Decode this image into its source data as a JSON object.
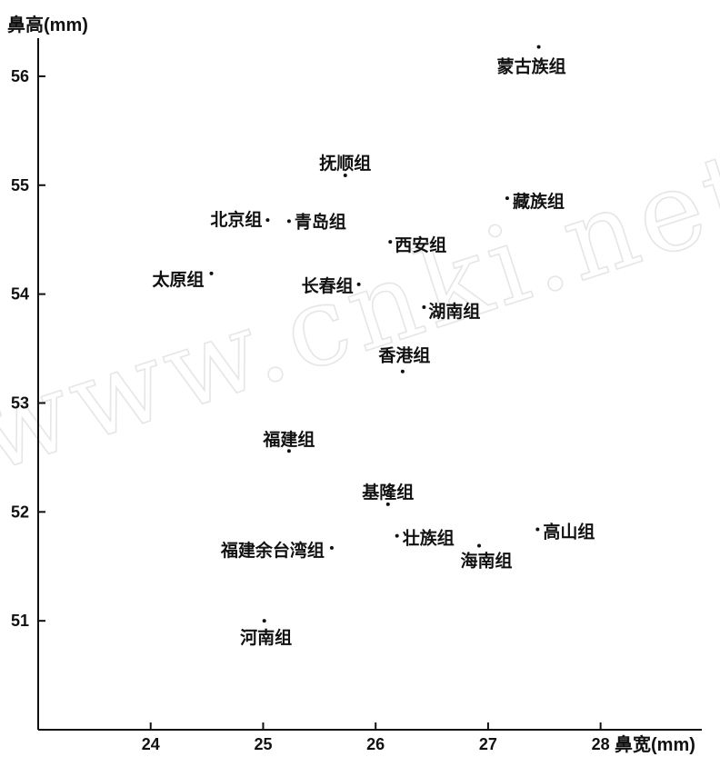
{
  "chart_data": {
    "type": "scatter",
    "xlabel": "鼻宽(mm)",
    "ylabel": "鼻高(mm)",
    "xticks": [
      24,
      25,
      26,
      27,
      28
    ],
    "yticks": [
      51,
      52,
      53,
      54,
      55,
      56
    ],
    "xlim": [
      23.0,
      28.9
    ],
    "ylim": [
      50.0,
      56.35
    ],
    "watermark": "www.cnki.net",
    "points": [
      {
        "label": "蒙古族组",
        "x": 27.45,
        "y": 56.27
      },
      {
        "label": "抚顺组",
        "x": 25.73,
        "y": 55.09
      },
      {
        "label": "藏族组",
        "x": 27.17,
        "y": 54.88
      },
      {
        "label": "北京组",
        "x": 25.04,
        "y": 54.68
      },
      {
        "label": "青岛组",
        "x": 25.23,
        "y": 54.67
      },
      {
        "label": "西安组",
        "x": 26.13,
        "y": 54.48
      },
      {
        "label": "太原组",
        "x": 24.54,
        "y": 54.19
      },
      {
        "label": "长春组",
        "x": 25.85,
        "y": 54.09
      },
      {
        "label": "湖南组",
        "x": 26.43,
        "y": 53.88
      },
      {
        "label": "香港组",
        "x": 26.24,
        "y": 53.29
      },
      {
        "label": "福建组",
        "x": 25.23,
        "y": 52.56
      },
      {
        "label": "基隆组",
        "x": 26.11,
        "y": 52.07
      },
      {
        "label": "高山组",
        "x": 27.44,
        "y": 51.84
      },
      {
        "label": "壮族组",
        "x": 26.19,
        "y": 51.78
      },
      {
        "label": "海南组",
        "x": 26.92,
        "y": 51.69
      },
      {
        "label": "福建余台湾组",
        "x": 25.61,
        "y": 51.67
      },
      {
        "label": "河南组",
        "x": 25.01,
        "y": 51.0
      }
    ]
  }
}
